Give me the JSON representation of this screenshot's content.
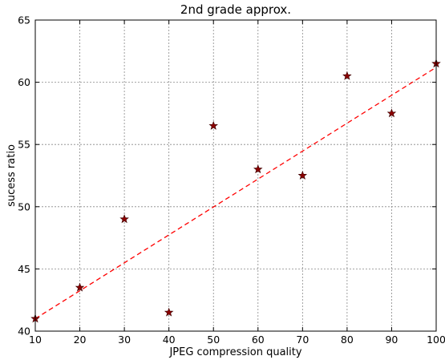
{
  "chart_data": {
    "type": "scatter",
    "title": "2nd grade approx.",
    "xlabel": "JPEG compression quality",
    "ylabel": "sucess ratio",
    "xlim": [
      10,
      100
    ],
    "ylim": [
      40,
      65
    ],
    "xticks": [
      10,
      20,
      30,
      40,
      50,
      60,
      70,
      80,
      90,
      100
    ],
    "yticks": [
      40,
      45,
      50,
      55,
      60,
      65
    ],
    "grid": true,
    "series": [
      {
        "kind": "scatter",
        "marker": "star",
        "color": "#8b0000",
        "x": [
          10,
          20,
          30,
          40,
          50,
          60,
          70,
          80,
          90,
          100
        ],
        "y": [
          41.0,
          43.5,
          49.0,
          41.5,
          56.5,
          53.0,
          52.5,
          60.5,
          57.5,
          61.5
        ]
      },
      {
        "kind": "line",
        "style": "dashed",
        "color": "#ff0000",
        "x": [
          10,
          100
        ],
        "y": [
          41.0,
          61.2
        ]
      }
    ]
  }
}
